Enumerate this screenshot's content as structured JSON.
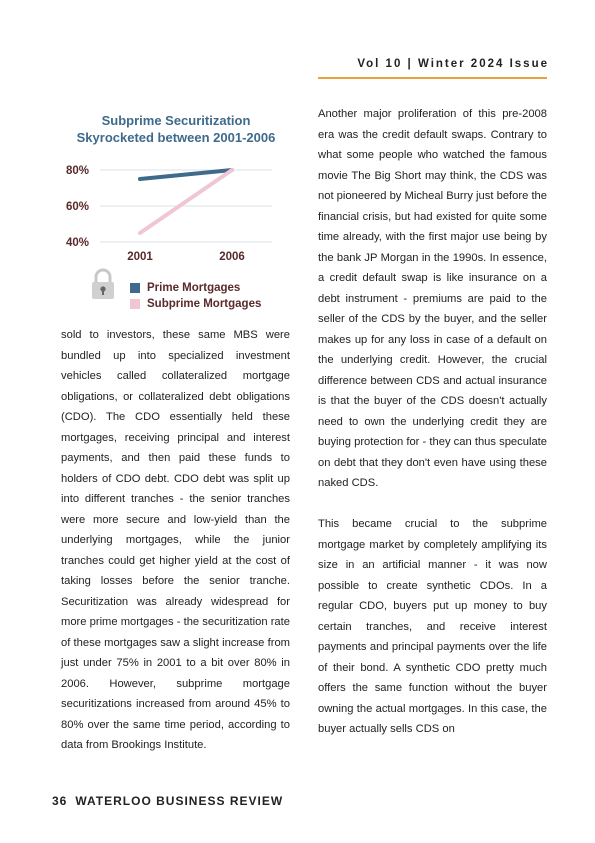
{
  "header": {
    "issue": "Vol 10 | Winter 2024 Issue"
  },
  "chart_data": {
    "type": "line",
    "title_line1": "Subprime Securitization",
    "title_line2": "Skyrocketed between 2001-2006",
    "categories": [
      "2001",
      "2006"
    ],
    "y_ticks": [
      "80%",
      "60%",
      "40%"
    ],
    "ylim": [
      40,
      80
    ],
    "grid": true,
    "legend_position": "bottom",
    "series": [
      {
        "name": "Prime Mortgages",
        "color": "#3e6a8c",
        "values": [
          75,
          80
        ]
      },
      {
        "name": "Subprime Mortgages",
        "color": "#f0c6d4",
        "values": [
          45,
          80
        ]
      }
    ],
    "icon": "lock-icon"
  },
  "left_column": {
    "paragraph": "sold to investors, these same MBS were bundled up into specialized investment vehicles called collateralized mortgage obligations, or collateralized debt obligations (CDO). The CDO essentially held these mortgages, receiving principal and interest payments, and then paid these funds to holders of CDO debt. CDO debt was split up into different tranches - the senior tranches were more secure and low-yield than the underlying mortgages, while the junior tranches could get higher yield at the cost of taking losses before the senior tranche. Securitization was already widespread for more prime mortgages - the securitization rate of these mortgages saw a slight increase from just under 75% in 2001 to a bit over 80% in 2006. However, subprime mortgage securitizations increased from around 45% to 80% over the same time period, according to data from Brookings Institute."
  },
  "right_column": {
    "paragraph1": "Another major proliferation of this pre-2008 era was the credit default swaps. Contrary to what some people who watched the famous movie The Big Short may think, the CDS was not pioneered by Micheal Burry just before the financial crisis, but had existed for quite some time already, with the first major use being by the bank JP Morgan in the 1990s. In essence, a credit default swap is like insurance on a debt instrument - premiums are paid to the seller of the CDS by the buyer, and the seller makes up for any loss in case of a default on the underlying credit. However, the crucial difference between CDS and actual insurance is that the buyer of the CDS doesn't actually need to own the underlying credit they are buying protection for - they can thus speculate on debt that they don't even have using these naked CDS.",
    "paragraph2": "This became crucial to the subprime mortgage market by completely amplifying its size in an artificial manner - it was now possible to create synthetic CDOs. In a regular CDO, buyers put up money to buy certain tranches, and receive interest payments and principal payments over the life of their bond. A synthetic CDO pretty much offers the same function without the buyer owning the actual mortgages. In this case, the buyer actually sells CDS on"
  },
  "footer": {
    "page_number": "36",
    "publication": "WATERLOO BUSINESS REVIEW"
  }
}
